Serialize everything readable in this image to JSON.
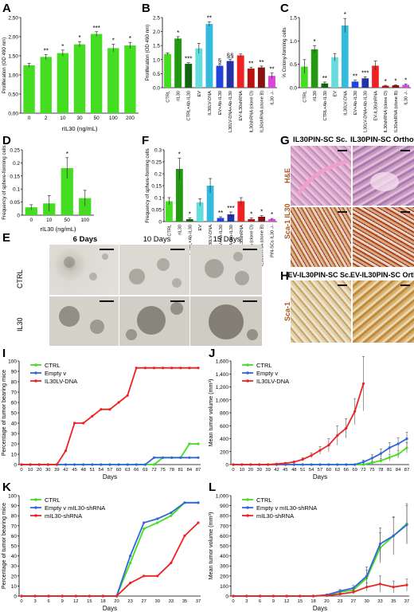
{
  "panel_labels": {
    "A": "A",
    "B": "B",
    "C": "C",
    "D": "D",
    "E": "E",
    "F": "F",
    "G": "G",
    "H": "H",
    "I": "I",
    "J": "J",
    "K": "K",
    "L": "L"
  },
  "chart_data": [
    {
      "id": "A",
      "type": "bar",
      "categories": [
        "0",
        "2",
        "10",
        "30",
        "50",
        "100",
        "200"
      ],
      "values": [
        1.25,
        1.47,
        1.57,
        1.8,
        2.07,
        1.7,
        1.77
      ],
      "errors": [
        0.05,
        0.06,
        0.08,
        0.07,
        0.06,
        0.1,
        0.08
      ],
      "sig": [
        "",
        "**",
        "*",
        "*",
        "***",
        "*",
        "*"
      ],
      "xlabel": "rIL30 (ng/mL)",
      "ylabel": "Proliferation (OD 490 nm)",
      "yticks": [
        "0,00",
        "0,50",
        "1,00",
        "1,50",
        "2,00",
        "2,50"
      ],
      "ylim": [
        0,
        2.5
      ],
      "color": "#44dd22"
    },
    {
      "id": "B",
      "type": "bar",
      "categories": [
        "CTRL",
        "rIL30",
        "CTRL+Ab-IL30",
        "EV",
        "IL30LV-DNA",
        "EV+Ab-IL30",
        "IL30LV-DNA+Ab-IL30",
        "EV-IL30shRNA",
        "IL30shRNA (clone D)",
        "IL30shRNA (clone B)",
        "IL30 -/-"
      ],
      "values": [
        1.2,
        1.75,
        0.85,
        1.4,
        2.27,
        0.78,
        0.95,
        1.15,
        0.68,
        0.72,
        0.42
      ],
      "errors": [
        0.04,
        0.07,
        0.04,
        0.18,
        0.08,
        0.05,
        0.06,
        0.05,
        0.05,
        0.05,
        0.1
      ],
      "sig": [
        "",
        "*",
        "***",
        "",
        "**",
        "§",
        "§§",
        "",
        "**",
        "**",
        "**"
      ],
      "ylabel": "Proliferation (OD 490 nm)",
      "yticks": [
        "0.0",
        "0.5",
        "1.0",
        "1.5",
        "2.0",
        "2.5"
      ],
      "ylim": [
        0,
        2.5
      ],
      "colors": [
        "#44dd22",
        "#229911",
        "#116611",
        "#66dddd",
        "#33bbdd",
        "#2244dd",
        "#2233aa",
        "#ee2222",
        "#bb1111",
        "#881111",
        "#dd44dd"
      ]
    },
    {
      "id": "C",
      "type": "bar",
      "categories": [
        "CTRL",
        "rIL30",
        "CTRL+Ab-IL30",
        "EV",
        "IL30LV-DNA",
        "EV+Ab-IL30",
        "IL30LV-DNA+Ab-IL30",
        "EV-IL30shRNA",
        "IL30shRNA (clone D)",
        "IL30shRNA (clone B)",
        "IL30 -/-"
      ],
      "values": [
        0.45,
        0.82,
        0.09,
        0.65,
        1.33,
        0.13,
        0.2,
        0.47,
        0.04,
        0.05,
        0.06
      ],
      "errors": [
        0.15,
        0.08,
        0.03,
        0.08,
        0.15,
        0.03,
        0.03,
        0.1,
        0.01,
        0.01,
        0.02
      ],
      "sig": [
        "",
        "*",
        "**",
        "",
        "*",
        "**",
        "***",
        "",
        "*",
        "*",
        "*"
      ],
      "ylabel": "% Colony-forming cells",
      "yticks": [
        "0.0",
        "0.5",
        "1.0",
        "1.5"
      ],
      "ylim": [
        0,
        1.5
      ],
      "colors": [
        "#44dd22",
        "#229911",
        "#116611",
        "#66dddd",
        "#33bbdd",
        "#2244dd",
        "#2233aa",
        "#ee2222",
        "#bb1111",
        "#881111",
        "#dd44dd"
      ]
    },
    {
      "id": "D",
      "type": "bar",
      "categories": [
        "0",
        "10",
        "50",
        "100"
      ],
      "values": [
        0.03,
        0.045,
        0.18,
        0.065
      ],
      "errors": [
        0.01,
        0.03,
        0.04,
        0.03
      ],
      "sig": [
        "",
        "",
        "*",
        ""
      ],
      "xlabel": "rIL30 (ng/mL)",
      "ylabel": "Frequency of sphere-forming cells",
      "yticks": [
        "0",
        "0.05",
        "0.1",
        "0.15",
        "0.2",
        "0.25"
      ],
      "ylim": [
        0,
        0.25
      ],
      "color": "#44dd22"
    },
    {
      "id": "F",
      "type": "bar",
      "categories": [
        "CTRL",
        "rIL30",
        "CTRL+Ab-IL30",
        "EV",
        "IL30LV-DNA",
        "EV+Ab-IL30",
        "IL30LV-DNA+Ab-IL30",
        "EV-IL30shRNA",
        "IL30shRNA (clone D)",
        "IL30shRNA (clone B)",
        "PIN-SCs IL30 -/-"
      ],
      "values": [
        0.085,
        0.22,
        0.01,
        0.08,
        0.15,
        0.015,
        0.03,
        0.085,
        0.01,
        0.02,
        0.01
      ],
      "errors": [
        0.015,
        0.045,
        0.005,
        0.015,
        0.03,
        0.005,
        0.01,
        0.015,
        0.005,
        0.005,
        0.003
      ],
      "sig": [
        "",
        "*",
        "*",
        "",
        "",
        "**",
        "***",
        "",
        "*",
        "*",
        "*"
      ],
      "ylabel": "Frequency of sphere-forming cells",
      "yticks": [
        "0",
        "0.05",
        "0.1",
        "0.15",
        "0.2",
        "0.25",
        "0.3"
      ],
      "ylim": [
        0,
        0.3
      ],
      "colors": [
        "#44dd22",
        "#229911",
        "#116611",
        "#66dddd",
        "#33bbdd",
        "#2244dd",
        "#2233aa",
        "#ee2222",
        "#bb1111",
        "#881111",
        "#dd44dd"
      ]
    },
    {
      "id": "I",
      "type": "line",
      "x": [
        0,
        10,
        20,
        30,
        39,
        42,
        45,
        48,
        51,
        54,
        57,
        60,
        63,
        66,
        69,
        72,
        75,
        78,
        81,
        84,
        87
      ],
      "xticks": [
        "0",
        "10",
        "20",
        "30",
        "39",
        "42",
        "45",
        "48",
        "51",
        "54",
        "57",
        "60",
        "63",
        "66",
        "69",
        "72",
        "75",
        "78",
        "81",
        "84",
        "87"
      ],
      "xlabel": "Days",
      "ylabel": "Percentage of tumor bearing mice",
      "yticks": [
        "0",
        "10",
        "20",
        "30",
        "40",
        "50",
        "60",
        "70",
        "80",
        "90",
        "100"
      ],
      "ylim": [
        0,
        100
      ],
      "legend": "top-left",
      "series": [
        {
          "name": "CTRL",
          "color": "#44dd22",
          "values": [
            0,
            0,
            0,
            0,
            0,
            0,
            0,
            0,
            0,
            0,
            0,
            0,
            0,
            0,
            0,
            0,
            6.7,
            6.7,
            6.7,
            20,
            20
          ]
        },
        {
          "name": "Empty v",
          "color": "#3366dd",
          "values": [
            0,
            0,
            0,
            0,
            0,
            0,
            0,
            0,
            0,
            0,
            0,
            0,
            0,
            0,
            0,
            6.7,
            6.7,
            6.7,
            6.7,
            6.7,
            6.7
          ]
        },
        {
          "name": "IL30LV-DNA",
          "color": "#ee2222",
          "values": [
            0,
            0,
            0,
            0,
            0,
            13.3,
            40,
            40,
            46.7,
            53.3,
            53.3,
            60,
            66.7,
            93.3,
            93.3,
            93.3,
            93.3,
            93.3,
            93.3,
            93.3,
            93.3
          ]
        }
      ]
    },
    {
      "id": "J",
      "type": "line",
      "x": [
        0,
        10,
        20,
        30,
        39,
        42,
        45,
        48,
        51,
        54,
        57,
        60,
        63,
        66,
        69,
        72,
        75,
        78,
        81,
        84,
        87
      ],
      "xticks": [
        "0",
        "10",
        "20",
        "30",
        "39",
        "42",
        "45",
        "48",
        "51",
        "54",
        "57",
        "60",
        "63",
        "66",
        "69",
        "72",
        "75",
        "78",
        "81",
        "84",
        "87"
      ],
      "xlabel": "Days",
      "ylabel": "Mean tumor volume (mm³)",
      "yticks": [
        "0",
        "200",
        "400",
        "600",
        "800",
        "1,000",
        "1,200",
        "1,400",
        "1,600"
      ],
      "ylim": [
        0,
        1600
      ],
      "legend": "top-left",
      "series": [
        {
          "name": "CTRL",
          "color": "#44dd22",
          "values": [
            0,
            0,
            0,
            0,
            0,
            0,
            0,
            0,
            0,
            0,
            0,
            0,
            0,
            0,
            0,
            0,
            30,
            60,
            110,
            160,
            260
          ],
          "errors": [
            0,
            0,
            0,
            0,
            0,
            0,
            0,
            0,
            0,
            0,
            0,
            0,
            0,
            0,
            0,
            0,
            20,
            30,
            50,
            60,
            80
          ]
        },
        {
          "name": "Empty v",
          "color": "#3366dd",
          "values": [
            0,
            0,
            0,
            0,
            0,
            0,
            0,
            0,
            0,
            0,
            0,
            0,
            0,
            0,
            0,
            40,
            100,
            170,
            260,
            320,
            400
          ],
          "errors": [
            0,
            0,
            0,
            0,
            0,
            0,
            0,
            0,
            0,
            0,
            0,
            0,
            0,
            0,
            0,
            30,
            50,
            70,
            80,
            90,
            100
          ]
        },
        {
          "name": "IL30LV-DNA",
          "color": "#ee2222",
          "values": [
            0,
            0,
            0,
            0,
            0,
            10,
            20,
            40,
            80,
            140,
            220,
            300,
            450,
            560,
            820,
            1250,
            null,
            null,
            null,
            null,
            null
          ],
          "errors": [
            0,
            0,
            0,
            0,
            0,
            5,
            10,
            15,
            25,
            40,
            60,
            100,
            150,
            150,
            200,
            420,
            null,
            null,
            null,
            null,
            null
          ]
        }
      ]
    },
    {
      "id": "K",
      "type": "line",
      "x": [
        0,
        3,
        6,
        9,
        12,
        15,
        18,
        20,
        23,
        27,
        30,
        33,
        35,
        37
      ],
      "xticks": [
        "0",
        "3",
        "6",
        "9",
        "12",
        "15",
        "18",
        "20",
        "23",
        "27",
        "30",
        "33",
        "35",
        "37"
      ],
      "xlabel": "Days",
      "ylabel": "Percentage of tumor bearing mice",
      "yticks": [
        "0",
        "10",
        "20",
        "30",
        "40",
        "50",
        "60",
        "70",
        "80",
        "90",
        "100"
      ],
      "ylim": [
        0,
        100
      ],
      "legend": "top-left",
      "series": [
        {
          "name": "CTRL",
          "color": "#44dd22",
          "values": [
            0,
            0,
            0,
            0,
            0,
            0,
            0,
            0,
            33,
            67,
            73,
            80,
            93,
            93
          ]
        },
        {
          "name": "Empty v mIL30-shRNA",
          "color": "#3366dd",
          "values": [
            0,
            0,
            0,
            0,
            0,
            0,
            0,
            0,
            40,
            73,
            77,
            83,
            93,
            93
          ]
        },
        {
          "name": "mIL30-shRNA",
          "color": "#ee2222",
          "values": [
            0,
            0,
            0,
            0,
            0,
            0,
            0,
            0,
            13,
            20,
            20,
            33,
            60,
            73
          ]
        }
      ]
    },
    {
      "id": "L",
      "type": "line",
      "x": [
        0,
        3,
        6,
        9,
        12,
        15,
        18,
        20,
        23,
        27,
        30,
        33,
        35,
        37
      ],
      "xticks": [
        "0",
        "3",
        "6",
        "9",
        "12",
        "15",
        "18",
        "20",
        "23",
        "27",
        "30",
        "33",
        "35",
        "37"
      ],
      "xlabel": "Days",
      "ylabel": "Mean tumor volume (mm³)",
      "yticks": [
        "0",
        "100",
        "200",
        "300",
        "400",
        "500",
        "600",
        "700",
        "800",
        "900",
        "1,000"
      ],
      "ylim": [
        0,
        1000
      ],
      "legend": "top-left",
      "series": [
        {
          "name": "CTRL",
          "color": "#44dd22",
          "values": [
            0,
            0,
            0,
            0,
            0,
            0,
            0,
            10,
            40,
            60,
            180,
            480,
            600,
            720
          ],
          "errors": [
            0,
            0,
            0,
            0,
            0,
            0,
            0,
            5,
            10,
            20,
            80,
            150,
            180,
            200
          ]
        },
        {
          "name": "Empty v mIL30-shRNA",
          "color": "#3366dd",
          "values": [
            0,
            0,
            0,
            0,
            0,
            0,
            0,
            12,
            50,
            80,
            200,
            520,
            600,
            710
          ],
          "errors": [
            0,
            0,
            0,
            0,
            0,
            0,
            0,
            5,
            15,
            25,
            90,
            160,
            190,
            190
          ]
        },
        {
          "name": "mIL30-shRNA",
          "color": "#ee2222",
          "values": [
            0,
            0,
            0,
            0,
            0,
            0,
            0,
            5,
            20,
            40,
            90,
            120,
            90,
            110
          ],
          "errors": [
            0,
            0,
            0,
            0,
            0,
            0,
            0,
            3,
            10,
            20,
            40,
            80,
            60,
            60
          ]
        }
      ]
    }
  ],
  "panel_E": {
    "columns": [
      "6 Days",
      "10 Days",
      "15 Days"
    ],
    "rows": [
      "CTRL",
      "IL30"
    ]
  },
  "panel_G": {
    "titles": [
      "IL30PIN-SC  Sc.",
      "IL30PIN-SC  Ortho."
    ],
    "row_labels": [
      "H&E",
      "Sca-1 IL30"
    ],
    "row_label_colors": [
      "#aa5522",
      "#aa5522"
    ]
  },
  "panel_H": {
    "titles": [
      "EV-IL30PIN-SC  Sc.",
      "EV-IL30PIN-SC  Ortho."
    ],
    "row_label": "Sca-1"
  }
}
